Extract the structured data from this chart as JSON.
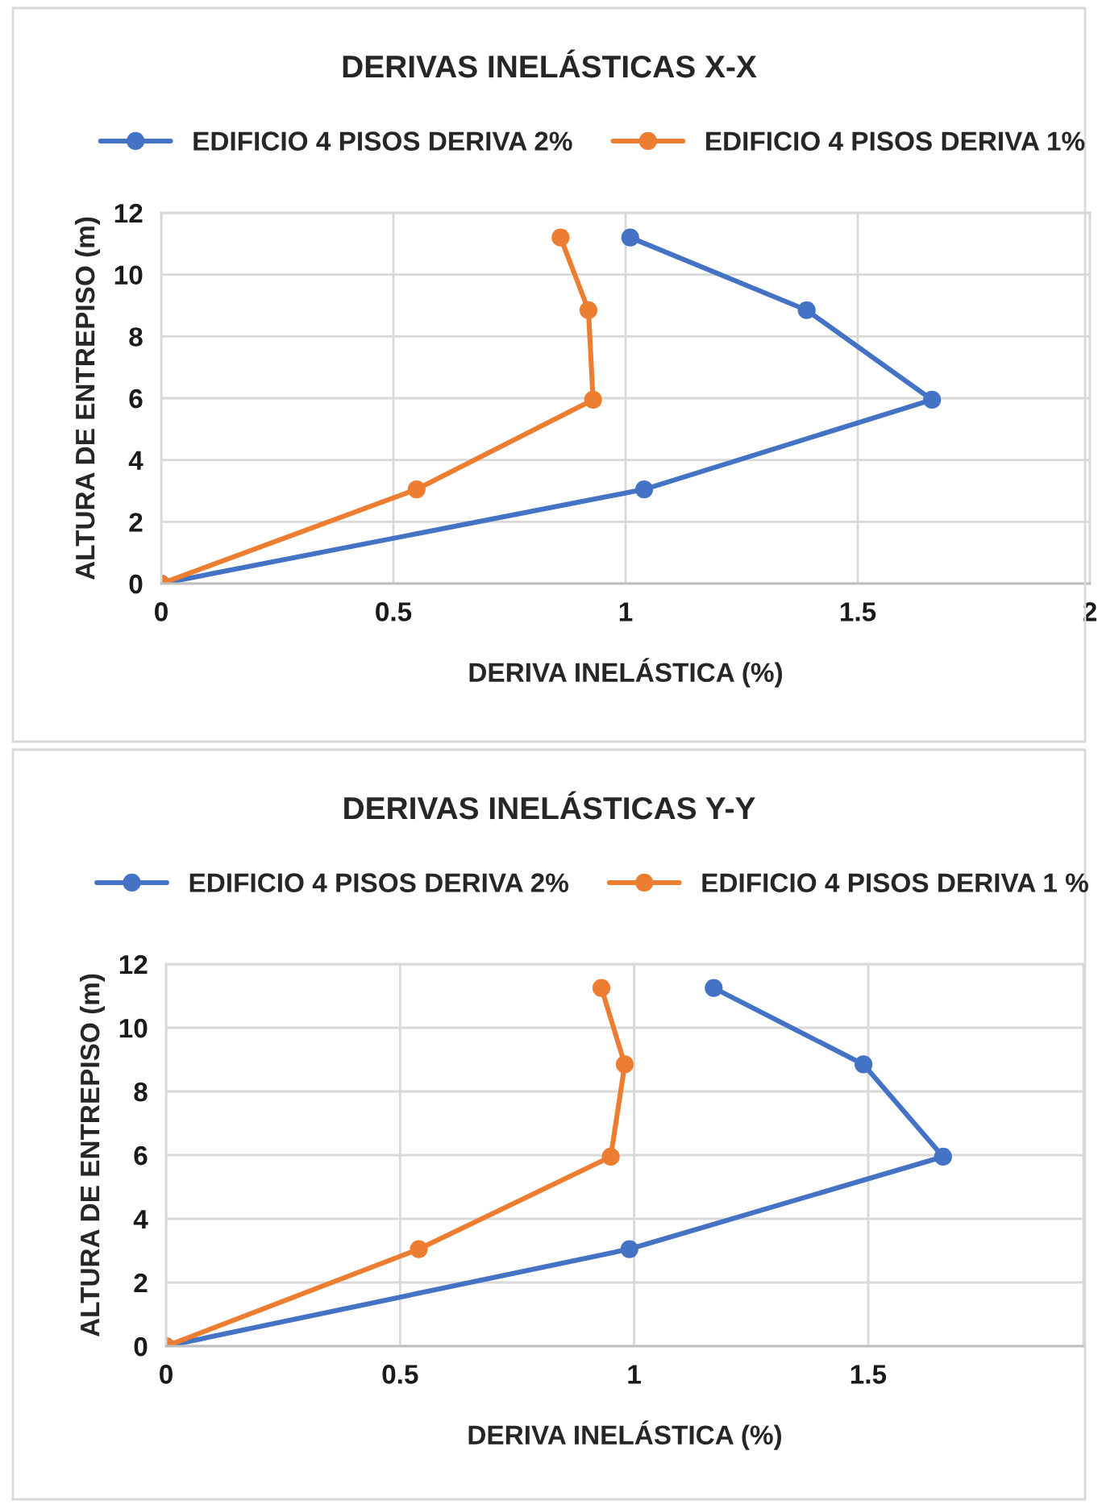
{
  "chart_data": [
    {
      "type": "line",
      "title": "DERIVAS INELÁSTICAS X-X",
      "xlabel": "DERIVA INELÁSTICA (%)",
      "ylabel": "ALTURA DE ENTREPISO (m)",
      "xlim": [
        0,
        2
      ],
      "xticks": [
        0,
        0.5,
        1,
        1.5,
        2
      ],
      "ylim": [
        0,
        12
      ],
      "yticks": [
        0,
        2,
        4,
        6,
        8,
        10,
        12
      ],
      "grid": true,
      "legend": "top",
      "marker": "circle",
      "series": [
        {
          "name": "EDIFICIO 4 PISOS DERIVA 2%",
          "color": "#4472c4",
          "x": [
            0,
            1.04,
            1.66,
            1.39,
            1.01
          ],
          "values": [
            0,
            3.05,
            5.95,
            8.85,
            11.2
          ]
        },
        {
          "name": "EDIFICIO 4 PISOS DERIVA 1%",
          "color": "#ed7d31",
          "x": [
            0,
            0.55,
            0.93,
            0.92,
            0.86
          ],
          "values": [
            0,
            3.05,
            5.95,
            8.85,
            11.2
          ]
        }
      ]
    },
    {
      "type": "line",
      "title": "DERIVAS INELÁSTICAS Y-Y",
      "xlabel": "DERIVA INELÁSTICA (%)",
      "ylabel": "ALTURA DE ENTREPISO (m)",
      "xlim": [
        0,
        1.96
      ],
      "xticks": [
        0,
        0.5,
        1,
        1.5
      ],
      "ylim": [
        0,
        12
      ],
      "yticks": [
        0,
        2,
        4,
        6,
        8,
        10,
        12
      ],
      "grid": true,
      "legend": "top",
      "marker": "circle",
      "series": [
        {
          "name": "EDIFICIO 4 PISOS DERIVA 2%",
          "color": "#4472c4",
          "x": [
            0,
            0.99,
            1.66,
            1.49,
            1.17
          ],
          "values": [
            0,
            3.05,
            5.95,
            8.85,
            11.25
          ]
        },
        {
          "name": "EDIFICIO 4 PISOS DERIVA 1 %",
          "color": "#ed7d31",
          "x": [
            0,
            0.54,
            0.95,
            0.98,
            0.93
          ],
          "values": [
            0,
            3.05,
            5.95,
            8.85,
            11.25
          ]
        }
      ]
    }
  ]
}
